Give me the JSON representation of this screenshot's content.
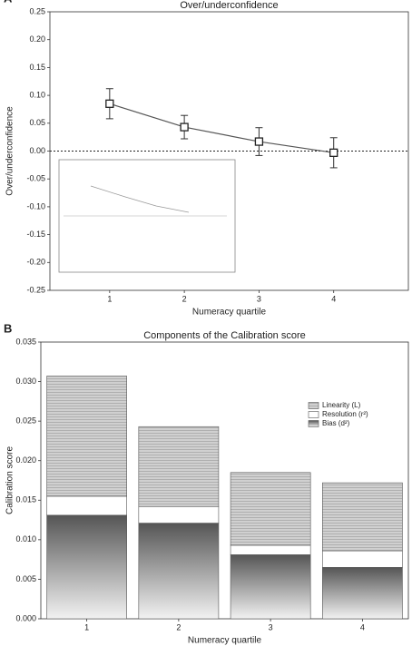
{
  "chart_data": [
    {
      "type": "line",
      "panel": "A",
      "title": "Over/underconfidence",
      "xlabel": "Numeracy quartile",
      "ylabel": "Over/underconfidence",
      "x": [
        1,
        2,
        3,
        4
      ],
      "values": [
        0.085,
        0.043,
        0.017,
        -0.003
      ],
      "errors": [
        0.027,
        0.021,
        0.025,
        0.027
      ],
      "color": "#555555",
      "xlim": [
        0.2,
        5
      ],
      "xticks": [
        1,
        2,
        3,
        4
      ],
      "ylim": [
        -0.25,
        0.25
      ],
      "yticks": [
        -0.25,
        {
          "value": -0.2,
          "label": "-0.20"
        },
        -0.15,
        {
          "value": -0.1,
          "label": "-0.10"
        },
        -0.05,
        {
          "value": 0,
          "label": "0.00"
        },
        0.05,
        {
          "value": 0.1,
          "label": "0.10"
        },
        0.15,
        {
          "value": 0.2,
          "label": "0.20"
        },
        0.25
      ]
    },
    {
      "type": "stacked_bar",
      "panel": "B",
      "title": "Components of the Calibration score",
      "xlabel": "Numeracy quartile",
      "ylabel": "Calibration score",
      "categories": [
        "1",
        "2",
        "3",
        "4"
      ],
      "series": [
        {
          "name": "Bias (d²)",
          "color": "#555555",
          "values": [
            0.0131,
            0.0121,
            0.0081,
            0.0065
          ]
        },
        {
          "name": "Resolution (r²)",
          "color": "#ffffff",
          "values": [
            0.0024,
            0.0021,
            0.0012,
            0.0021
          ]
        },
        {
          "name": "Linearity (L)",
          "color": "#d0d0d0",
          "values": [
            0.0152,
            0.0101,
            0.0092,
            0.0086
          ]
        }
      ],
      "ylim": [
        0,
        0.035
      ],
      "yticks": [
        {
          "value": 0,
          "label": "0.000"
        },
        0.005,
        {
          "value": 0.01,
          "label": "0.010"
        },
        0.015,
        {
          "value": 0.02,
          "label": "0.020"
        },
        0.025,
        {
          "value": 0.03,
          "label": "0.030"
        },
        0.035
      ],
      "legend": "upper right"
    }
  ]
}
